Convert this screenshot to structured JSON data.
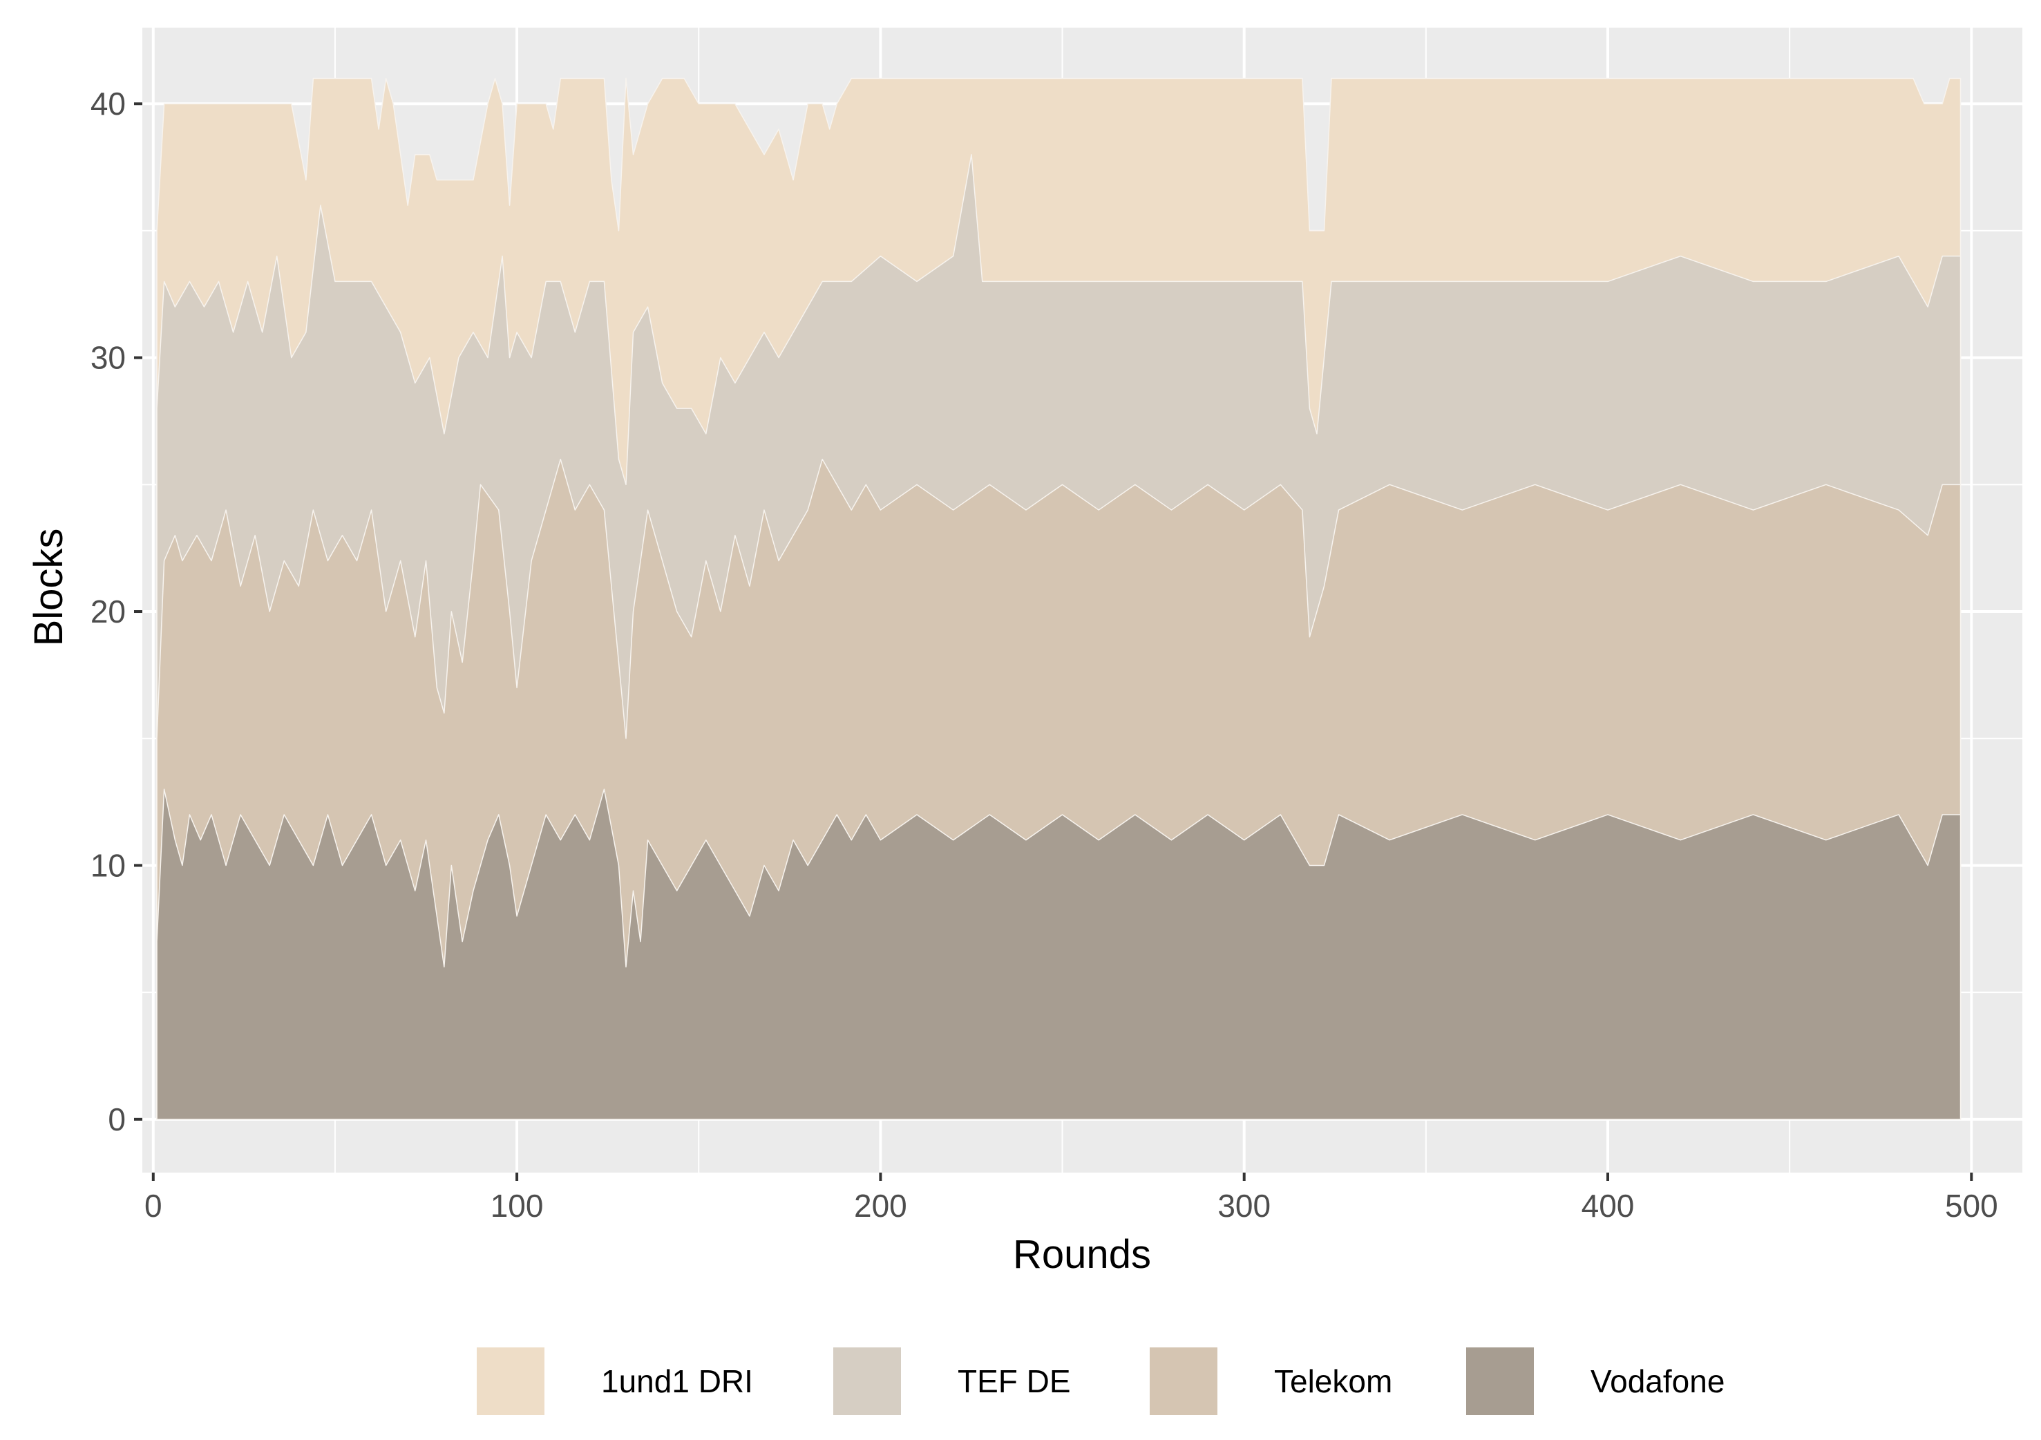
{
  "chart_data": {
    "type": "area",
    "stacked": true,
    "xlabel": "Rounds",
    "ylabel": "Blocks",
    "xlim": [
      -3,
      514
    ],
    "ylim": [
      -2.1,
      43
    ],
    "x_ticks": [
      0,
      100,
      200,
      300,
      400,
      500
    ],
    "y_ticks": [
      0,
      10,
      20,
      30,
      40
    ],
    "grid": true,
    "legend_position": "bottom",
    "legend": [
      "1und1 DRI",
      "TEF DE",
      "Telekom",
      "Vodafone"
    ],
    "series": [
      {
        "name": "Vodafone",
        "color": "#a79d91",
        "points": [
          [
            1,
            7
          ],
          [
            3,
            13
          ],
          [
            6,
            11
          ],
          [
            8,
            10
          ],
          [
            10,
            12
          ],
          [
            13,
            11
          ],
          [
            16,
            12
          ],
          [
            20,
            10
          ],
          [
            24,
            12
          ],
          [
            28,
            11
          ],
          [
            32,
            10
          ],
          [
            36,
            12
          ],
          [
            40,
            11
          ],
          [
            44,
            10
          ],
          [
            48,
            12
          ],
          [
            52,
            10
          ],
          [
            56,
            11
          ],
          [
            60,
            12
          ],
          [
            64,
            10
          ],
          [
            68,
            11
          ],
          [
            72,
            9
          ],
          [
            75,
            11
          ],
          [
            78,
            8
          ],
          [
            80,
            6
          ],
          [
            82,
            10
          ],
          [
            85,
            7
          ],
          [
            88,
            9
          ],
          [
            92,
            11
          ],
          [
            95,
            12
          ],
          [
            98,
            10
          ],
          [
            100,
            8
          ],
          [
            104,
            10
          ],
          [
            108,
            12
          ],
          [
            112,
            11
          ],
          [
            116,
            12
          ],
          [
            120,
            11
          ],
          [
            124,
            13
          ],
          [
            128,
            10
          ],
          [
            130,
            6
          ],
          [
            132,
            9
          ],
          [
            134,
            7
          ],
          [
            136,
            11
          ],
          [
            140,
            10
          ],
          [
            144,
            9
          ],
          [
            148,
            10
          ],
          [
            152,
            11
          ],
          [
            156,
            10
          ],
          [
            160,
            9
          ],
          [
            164,
            8
          ],
          [
            168,
            10
          ],
          [
            172,
            9
          ],
          [
            176,
            11
          ],
          [
            180,
            10
          ],
          [
            184,
            11
          ],
          [
            188,
            12
          ],
          [
            192,
            11
          ],
          [
            196,
            12
          ],
          [
            200,
            11
          ],
          [
            210,
            12
          ],
          [
            220,
            11
          ],
          [
            230,
            12
          ],
          [
            240,
            11
          ],
          [
            250,
            12
          ],
          [
            260,
            11
          ],
          [
            270,
            12
          ],
          [
            280,
            11
          ],
          [
            290,
            12
          ],
          [
            300,
            11
          ],
          [
            310,
            12
          ],
          [
            318,
            10
          ],
          [
            322,
            10
          ],
          [
            326,
            12
          ],
          [
            340,
            11
          ],
          [
            360,
            12
          ],
          [
            380,
            11
          ],
          [
            400,
            12
          ],
          [
            420,
            11
          ],
          [
            440,
            12
          ],
          [
            460,
            11
          ],
          [
            480,
            12
          ],
          [
            488,
            10
          ],
          [
            492,
            12
          ],
          [
            497,
            12
          ]
        ]
      },
      {
        "name": "Telekom",
        "color": "#d5c5b2",
        "points": [
          [
            1,
            15
          ],
          [
            3,
            22
          ],
          [
            6,
            23
          ],
          [
            8,
            22
          ],
          [
            12,
            23
          ],
          [
            16,
            22
          ],
          [
            20,
            24
          ],
          [
            24,
            21
          ],
          [
            28,
            23
          ],
          [
            32,
            20
          ],
          [
            36,
            22
          ],
          [
            40,
            21
          ],
          [
            44,
            24
          ],
          [
            48,
            22
          ],
          [
            52,
            23
          ],
          [
            56,
            22
          ],
          [
            60,
            24
          ],
          [
            64,
            20
          ],
          [
            68,
            22
          ],
          [
            72,
            19
          ],
          [
            75,
            22
          ],
          [
            78,
            17
          ],
          [
            80,
            16
          ],
          [
            82,
            20
          ],
          [
            85,
            18
          ],
          [
            88,
            22
          ],
          [
            90,
            25
          ],
          [
            95,
            24
          ],
          [
            98,
            20
          ],
          [
            100,
            17
          ],
          [
            104,
            22
          ],
          [
            108,
            24
          ],
          [
            112,
            26
          ],
          [
            116,
            24
          ],
          [
            120,
            25
          ],
          [
            124,
            24
          ],
          [
            126,
            21
          ],
          [
            128,
            18
          ],
          [
            130,
            15
          ],
          [
            132,
            20
          ],
          [
            136,
            24
          ],
          [
            140,
            22
          ],
          [
            144,
            20
          ],
          [
            148,
            19
          ],
          [
            152,
            22
          ],
          [
            156,
            20
          ],
          [
            160,
            23
          ],
          [
            164,
            21
          ],
          [
            168,
            24
          ],
          [
            172,
            22
          ],
          [
            176,
            23
          ],
          [
            180,
            24
          ],
          [
            184,
            26
          ],
          [
            188,
            25
          ],
          [
            192,
            24
          ],
          [
            196,
            25
          ],
          [
            200,
            24
          ],
          [
            210,
            25
          ],
          [
            220,
            24
          ],
          [
            230,
            25
          ],
          [
            240,
            24
          ],
          [
            250,
            25
          ],
          [
            260,
            24
          ],
          [
            270,
            25
          ],
          [
            280,
            24
          ],
          [
            290,
            25
          ],
          [
            300,
            24
          ],
          [
            310,
            25
          ],
          [
            316,
            24
          ],
          [
            318,
            19
          ],
          [
            322,
            21
          ],
          [
            326,
            24
          ],
          [
            340,
            25
          ],
          [
            360,
            24
          ],
          [
            380,
            25
          ],
          [
            400,
            24
          ],
          [
            420,
            25
          ],
          [
            440,
            24
          ],
          [
            460,
            25
          ],
          [
            480,
            24
          ],
          [
            488,
            23
          ],
          [
            492,
            25
          ],
          [
            497,
            25
          ]
        ]
      },
      {
        "name": "TEF DE",
        "color": "#d6cec3",
        "points": [
          [
            1,
            28
          ],
          [
            3,
            33
          ],
          [
            6,
            32
          ],
          [
            10,
            33
          ],
          [
            14,
            32
          ],
          [
            18,
            33
          ],
          [
            22,
            31
          ],
          [
            26,
            33
          ],
          [
            30,
            31
          ],
          [
            34,
            34
          ],
          [
            38,
            30
          ],
          [
            42,
            31
          ],
          [
            46,
            36
          ],
          [
            50,
            33
          ],
          [
            55,
            33
          ],
          [
            60,
            33
          ],
          [
            64,
            32
          ],
          [
            68,
            31
          ],
          [
            72,
            29
          ],
          [
            76,
            30
          ],
          [
            80,
            27
          ],
          [
            84,
            30
          ],
          [
            88,
            31
          ],
          [
            92,
            30
          ],
          [
            96,
            34
          ],
          [
            98,
            30
          ],
          [
            100,
            31
          ],
          [
            104,
            30
          ],
          [
            108,
            33
          ],
          [
            112,
            33
          ],
          [
            116,
            31
          ],
          [
            120,
            33
          ],
          [
            124,
            33
          ],
          [
            128,
            26
          ],
          [
            130,
            25
          ],
          [
            132,
            31
          ],
          [
            136,
            32
          ],
          [
            140,
            29
          ],
          [
            144,
            28
          ],
          [
            148,
            28
          ],
          [
            152,
            27
          ],
          [
            156,
            30
          ],
          [
            160,
            29
          ],
          [
            164,
            30
          ],
          [
            168,
            31
          ],
          [
            172,
            30
          ],
          [
            176,
            31
          ],
          [
            180,
            32
          ],
          [
            184,
            33
          ],
          [
            188,
            33
          ],
          [
            192,
            33
          ],
          [
            200,
            34
          ],
          [
            210,
            33
          ],
          [
            220,
            34
          ],
          [
            225,
            38
          ],
          [
            228,
            33
          ],
          [
            240,
            33
          ],
          [
            260,
            33
          ],
          [
            280,
            33
          ],
          [
            300,
            33
          ],
          [
            316,
            33
          ],
          [
            318,
            28
          ],
          [
            320,
            27
          ],
          [
            324,
            33
          ],
          [
            340,
            33
          ],
          [
            360,
            33
          ],
          [
            380,
            33
          ],
          [
            400,
            33
          ],
          [
            420,
            34
          ],
          [
            440,
            33
          ],
          [
            460,
            33
          ],
          [
            480,
            34
          ],
          [
            488,
            32
          ],
          [
            492,
            34
          ],
          [
            497,
            34
          ]
        ]
      },
      {
        "name": "1und1 DRI",
        "color": "#eeddc7",
        "points": [
          [
            1,
            35
          ],
          [
            3,
            40
          ],
          [
            8,
            40
          ],
          [
            14,
            40
          ],
          [
            20,
            40
          ],
          [
            26,
            40
          ],
          [
            32,
            40
          ],
          [
            38,
            40
          ],
          [
            42,
            37
          ],
          [
            44,
            41
          ],
          [
            50,
            41
          ],
          [
            56,
            41
          ],
          [
            60,
            41
          ],
          [
            62,
            39
          ],
          [
            64,
            41
          ],
          [
            66,
            40
          ],
          [
            68,
            38
          ],
          [
            70,
            36
          ],
          [
            72,
            38
          ],
          [
            76,
            38
          ],
          [
            78,
            37
          ],
          [
            82,
            37
          ],
          [
            88,
            37
          ],
          [
            92,
            40
          ],
          [
            94,
            41
          ],
          [
            96,
            40
          ],
          [
            98,
            36
          ],
          [
            100,
            40
          ],
          [
            104,
            40
          ],
          [
            108,
            40
          ],
          [
            110,
            39
          ],
          [
            112,
            41
          ],
          [
            118,
            41
          ],
          [
            124,
            41
          ],
          [
            126,
            37
          ],
          [
            128,
            35
          ],
          [
            130,
            41
          ],
          [
            132,
            38
          ],
          [
            136,
            40
          ],
          [
            140,
            41
          ],
          [
            146,
            41
          ],
          [
            150,
            40
          ],
          [
            156,
            40
          ],
          [
            160,
            40
          ],
          [
            164,
            39
          ],
          [
            168,
            38
          ],
          [
            172,
            39
          ],
          [
            176,
            37
          ],
          [
            180,
            40
          ],
          [
            184,
            40
          ],
          [
            186,
            39
          ],
          [
            188,
            40
          ],
          [
            192,
            41
          ],
          [
            200,
            41
          ],
          [
            220,
            41
          ],
          [
            240,
            41
          ],
          [
            260,
            41
          ],
          [
            280,
            41
          ],
          [
            300,
            41
          ],
          [
            316,
            41
          ],
          [
            318,
            35
          ],
          [
            322,
            35
          ],
          [
            324,
            41
          ],
          [
            340,
            41
          ],
          [
            360,
            41
          ],
          [
            380,
            41
          ],
          [
            400,
            41
          ],
          [
            420,
            41
          ],
          [
            440,
            41
          ],
          [
            460,
            41
          ],
          [
            484,
            41
          ],
          [
            487,
            40
          ],
          [
            492,
            40
          ],
          [
            494,
            41
          ],
          [
            497,
            41
          ]
        ]
      }
    ]
  }
}
